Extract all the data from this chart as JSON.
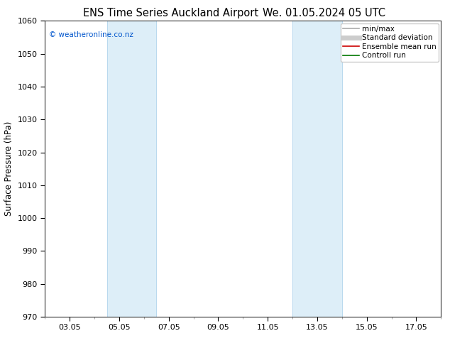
{
  "title_left": "ENS Time Series Auckland Airport",
  "title_right": "We. 01.05.2024 05 UTC",
  "ylabel": "Surface Pressure (hPa)",
  "ylim": [
    970,
    1060
  ],
  "yticks": [
    970,
    980,
    990,
    1000,
    1010,
    1020,
    1030,
    1040,
    1050,
    1060
  ],
  "xtick_labels": [
    "03.05",
    "05.05",
    "07.05",
    "09.05",
    "11.05",
    "13.05",
    "15.05",
    "17.05"
  ],
  "xtick_positions": [
    2,
    4,
    6,
    8,
    10,
    12,
    14,
    16
  ],
  "xlim": [
    1,
    17
  ],
  "shaded_bands": [
    {
      "x_start": 3.5,
      "x_end": 5.5,
      "color": "#ddeef8"
    },
    {
      "x_start": 11.0,
      "x_end": 13.0,
      "color": "#ddeef8"
    }
  ],
  "band_border_color": "#b8d8ee",
  "watermark_text": "© weatheronline.co.nz",
  "watermark_color": "#0055cc",
  "legend_items": [
    {
      "label": "min/max",
      "color": "#aaaaaa",
      "lw": 1.2,
      "style": "-"
    },
    {
      "label": "Standard deviation",
      "color": "#cccccc",
      "lw": 5,
      "style": "-"
    },
    {
      "label": "Ensemble mean run",
      "color": "#cc0000",
      "lw": 1.2,
      "style": "-"
    },
    {
      "label": "Controll run",
      "color": "#007700",
      "lw": 1.2,
      "style": "-"
    }
  ],
  "bg_color": "#ffffff",
  "grid_color": "#dddddd",
  "title_fontsize": 10.5,
  "label_fontsize": 8.5,
  "tick_fontsize": 8,
  "watermark_fontsize": 7.5,
  "legend_fontsize": 7.5
}
